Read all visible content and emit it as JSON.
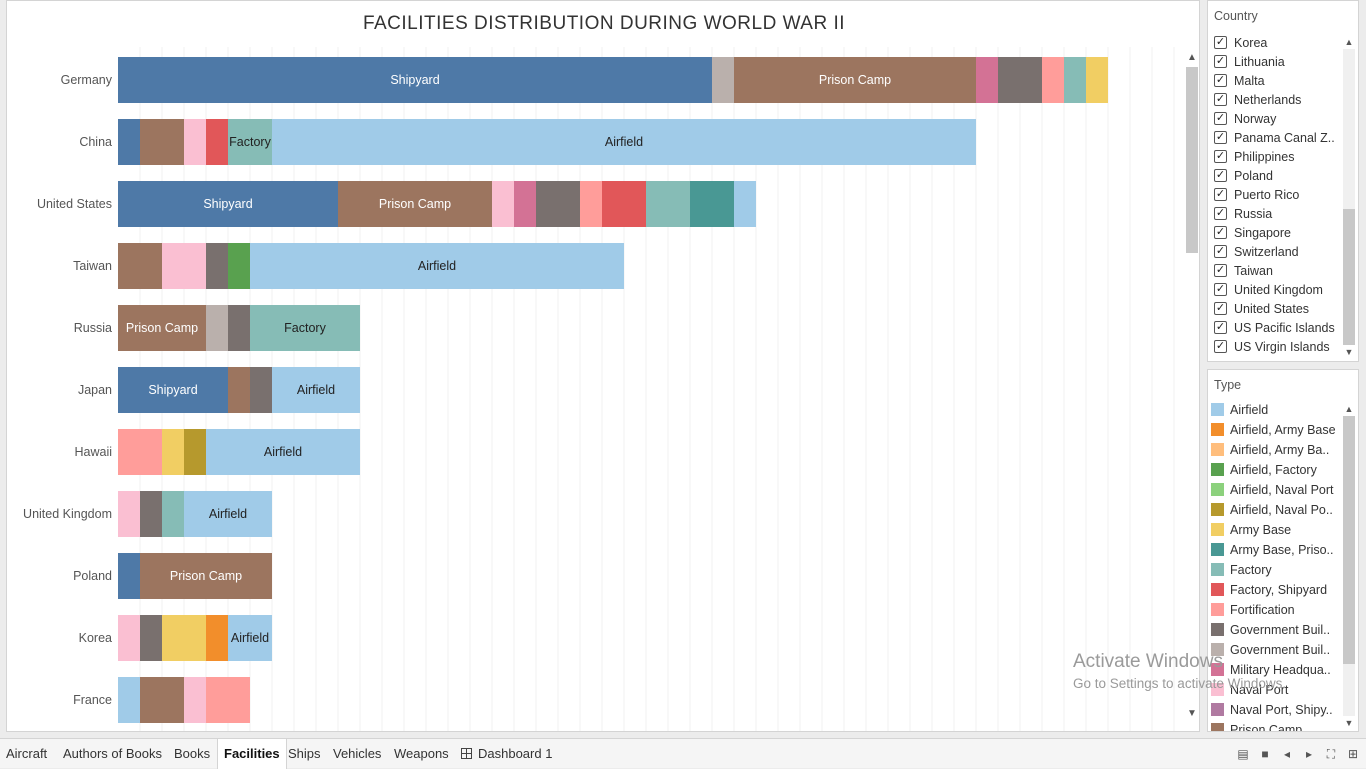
{
  "chart_data": {
    "type": "bar",
    "orientation": "horizontal",
    "stacked": true,
    "title": "FACILITIES DISTRIBUTION DURING WORLD WAR II",
    "categories": [
      "Germany",
      "China",
      "United States",
      "Taiwan",
      "Russia",
      "Japan",
      "Hawaii",
      "United Kingdom",
      "Poland",
      "Korea",
      "France"
    ],
    "segments": [
      [
        {
          "type": "Shipyard",
          "value": 27,
          "label": "Shipyard"
        },
        {
          "type": "Government Building 2",
          "value": 1
        },
        {
          "type": "Prison Camp",
          "value": 11,
          "label": "Prison Camp"
        },
        {
          "type": "Military Headquarters",
          "value": 1
        },
        {
          "type": "Government Building",
          "value": 2
        },
        {
          "type": "Fortification",
          "value": 1
        },
        {
          "type": "Factory",
          "value": 1
        },
        {
          "type": "Army Base",
          "value": 1
        }
      ],
      [
        {
          "type": "Shipyard",
          "value": 1
        },
        {
          "type": "Prison Camp",
          "value": 2
        },
        {
          "type": "Naval Port",
          "value": 1
        },
        {
          "type": "Factory, Shipyard",
          "value": 1
        },
        {
          "type": "Factory",
          "value": 2,
          "label": "Factory"
        },
        {
          "type": "Airfield",
          "value": 32,
          "label": "Airfield"
        }
      ],
      [
        {
          "type": "Shipyard",
          "value": 10,
          "label": "Shipyard"
        },
        {
          "type": "Prison Camp",
          "value": 7,
          "label": "Prison Camp"
        },
        {
          "type": "Naval Port",
          "value": 1
        },
        {
          "type": "Military Headquarters",
          "value": 1
        },
        {
          "type": "Government Building",
          "value": 2
        },
        {
          "type": "Fortification",
          "value": 1
        },
        {
          "type": "Factory, Shipyard",
          "value": 2
        },
        {
          "type": "Factory",
          "value": 2
        },
        {
          "type": "Army Base, Prison Camp",
          "value": 2
        },
        {
          "type": "Airfield",
          "value": 1
        }
      ],
      [
        {
          "type": "Prison Camp",
          "value": 2
        },
        {
          "type": "Naval Port",
          "value": 2
        },
        {
          "type": "Government Building",
          "value": 1
        },
        {
          "type": "Airfield, Factory",
          "value": 1
        },
        {
          "type": "Airfield",
          "value": 17,
          "label": "Airfield"
        }
      ],
      [
        {
          "type": "Prison Camp",
          "value": 4,
          "label": "Prison Camp"
        },
        {
          "type": "Government Building 2",
          "value": 1
        },
        {
          "type": "Government Building",
          "value": 1
        },
        {
          "type": "Factory",
          "value": 5,
          "label": "Factory"
        }
      ],
      [
        {
          "type": "Shipyard",
          "value": 5,
          "label": "Shipyard"
        },
        {
          "type": "Prison Camp",
          "value": 1
        },
        {
          "type": "Government Building",
          "value": 1
        },
        {
          "type": "Airfield",
          "value": 4,
          "label": "Airfield"
        }
      ],
      [
        {
          "type": "Fortification",
          "value": 2
        },
        {
          "type": "Army Base",
          "value": 1
        },
        {
          "type": "Airfield, Naval Port 2",
          "value": 1
        },
        {
          "type": "Airfield",
          "value": 7,
          "label": "Airfield"
        }
      ],
      [
        {
          "type": "Naval Port",
          "value": 1
        },
        {
          "type": "Government Building",
          "value": 1
        },
        {
          "type": "Factory",
          "value": 1
        },
        {
          "type": "Airfield",
          "value": 4,
          "label": "Airfield"
        }
      ],
      [
        {
          "type": "Shipyard",
          "value": 1
        },
        {
          "type": "Prison Camp",
          "value": 6,
          "label": "Prison Camp"
        }
      ],
      [
        {
          "type": "Naval Port",
          "value": 1
        },
        {
          "type": "Government Building",
          "value": 1
        },
        {
          "type": "Army Base",
          "value": 2
        },
        {
          "type": "Airfield, Army Base",
          "value": 1
        },
        {
          "type": "Airfield",
          "value": 2,
          "label": "Airfield"
        }
      ],
      [
        {
          "type": "Airfield",
          "value": 1
        },
        {
          "type": "Prison Camp",
          "value": 2
        },
        {
          "type": "Naval Port",
          "value": 1
        },
        {
          "type": "Fortification",
          "value": 2
        }
      ]
    ],
    "xlim": [
      0,
      48
    ],
    "grid": true,
    "colors": {
      "Shipyard": "#4e79a7",
      "Prison Camp": "#9c755f",
      "Airfield": "#a0cbe8",
      "Factory": "#86bcb6",
      "Naval Port": "#fabfd2",
      "Government Building": "#79706e",
      "Government Building 2": "#bab0ac",
      "Military Headquarters": "#d37295",
      "Fortification": "#ff9d9a",
      "Factory, Shipyard": "#e15759",
      "Army Base": "#f1ce63",
      "Army Base, Prison Camp": "#499894",
      "Airfield, Factory": "#59a14f",
      "Airfield, Army Base": "#f28e2b",
      "Airfield, Naval Port 2": "#b6992d",
      "Government Building Alt": "#d4a6c8"
    }
  },
  "country_filter": {
    "title": "Country",
    "items": [
      "Korea",
      "Lithuania",
      "Malta",
      "Netherlands",
      "Norway",
      "Panama Canal Z..",
      "Philippines",
      "Poland",
      "Puerto Rico",
      "Russia",
      "Singapore",
      "Switzerland",
      "Taiwan",
      "United Kingdom",
      "United States",
      "US Pacific Islands",
      "US Virgin Islands"
    ],
    "check_glyph": "✓"
  },
  "type_legend": {
    "title": "Type",
    "items": [
      {
        "label": "Airfield",
        "color": "#a0cbe8"
      },
      {
        "label": "Airfield, Army Base",
        "color": "#f28e2b"
      },
      {
        "label": "Airfield, Army Ba..",
        "color": "#ffbe7d"
      },
      {
        "label": "Airfield, Factory",
        "color": "#59a14f"
      },
      {
        "label": "Airfield, Naval Port",
        "color": "#8cd17d"
      },
      {
        "label": "Airfield, Naval Po..",
        "color": "#b6992d"
      },
      {
        "label": "Army Base",
        "color": "#f1ce63"
      },
      {
        "label": "Army Base, Priso..",
        "color": "#499894"
      },
      {
        "label": "Factory",
        "color": "#86bcb6"
      },
      {
        "label": "Factory, Shipyard",
        "color": "#e15759"
      },
      {
        "label": "Fortification",
        "color": "#ff9d9a"
      },
      {
        "label": "Government Buil..",
        "color": "#79706e"
      },
      {
        "label": "Government Buil..",
        "color": "#bab0ac"
      },
      {
        "label": "Military Headqua..",
        "color": "#d37295"
      },
      {
        "label": "Naval Port",
        "color": "#fabfd2"
      },
      {
        "label": "Naval Port, Shipy..",
        "color": "#b07aa1"
      },
      {
        "label": "Prison Camp",
        "color": "#9c755f"
      }
    ]
  },
  "watermark": {
    "line1": "Activate Windows",
    "line2": "Go to Settings to activate Windows."
  },
  "tabs": [
    {
      "label": "Aircraft"
    },
    {
      "label": "Authors of Books"
    },
    {
      "label": "Books"
    },
    {
      "label": "Facilities",
      "active": true
    },
    {
      "label": "Ships"
    },
    {
      "label": "Vehicles"
    },
    {
      "label": "Weapons"
    },
    {
      "label": "Dashboard 1",
      "icon": "dashboard-grid-icon"
    }
  ]
}
